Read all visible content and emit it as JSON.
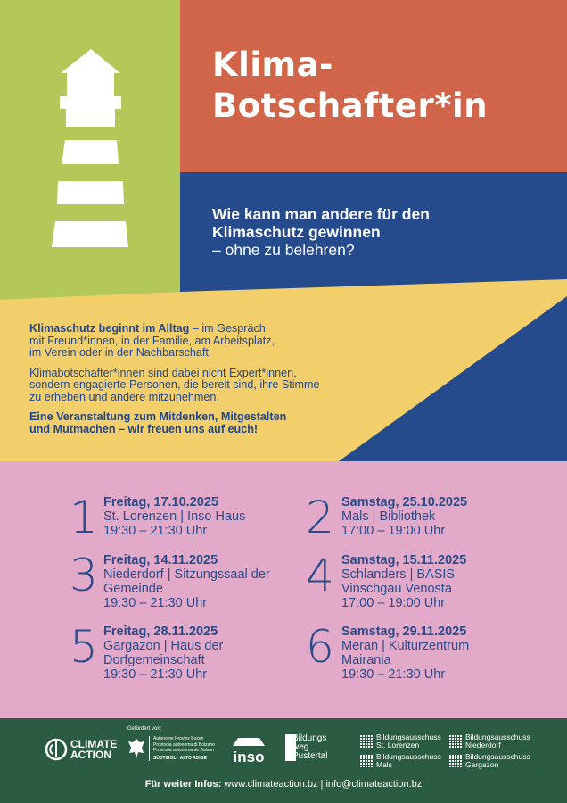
{
  "colors": {
    "green": "#b4c85a",
    "orange": "#d0654a",
    "blue": "#264b8d",
    "yellow": "#f2cf6b",
    "pink": "#e3a9c9",
    "footer": "#2b5b43",
    "text_blue": "#2a4b8a"
  },
  "header": {
    "title_line1": "Klima-",
    "title_line2": "Botschafter*in",
    "logo_icon": "lighthouse-icon"
  },
  "question": {
    "line1": "Wie kann man andere für den",
    "line2": "Klimaschutz gewinnen",
    "line3": "– ohne zu belehren?"
  },
  "intro": {
    "p1_bold": "Klimaschutz beginnt im Alltag",
    "p1_rest_1": " – im Gespräch",
    "p1_rest_2": "mit Freund*innen, in der Familie, am Arbeitsplatz,",
    "p1_rest_3": "im Verein oder in der Nachbarschaft.",
    "p2_1": "Klimabotschafter*innen sind dabei nicht Expert*innen,",
    "p2_2": "sondern engagierte Personen, die bereit sind, ihre Stimme",
    "p2_3": "zu erheben und andere mitzunehmen.",
    "p3_1": "Eine Veranstaltung zum Mitdenken, Mitgestalten",
    "p3_2": "und Mutmachen – wir freuen uns auf euch!"
  },
  "events": [
    {
      "number": "1",
      "date": "Freitag, 17.10.2025",
      "lines": [
        "St. Lorenzen | Inso Haus",
        "19:30 – 21:30 Uhr"
      ]
    },
    {
      "number": "2",
      "date": "Samstag, 25.10.2025",
      "lines": [
        "Mals | Bibliothek",
        "17:00 – 19:00 Uhr"
      ]
    },
    {
      "number": "3",
      "date": "Freitag, 14.11.2025",
      "lines": [
        "Niederdorf | Sitzungssaal der",
        "Gemeinde",
        "19:30 – 21:30 Uhr"
      ]
    },
    {
      "number": "4",
      "date": "Samstag, 15.11.2025",
      "lines": [
        "Schlanders | BASIS",
        "Vinschgau Venosta",
        "17:00 – 19:00 Uhr"
      ]
    },
    {
      "number": "5",
      "date": "Freitag, 28.11.2025",
      "lines": [
        "Gargazon | Haus der",
        "Dorfgemeinschaft",
        "19:30 – 21:30 Uhr"
      ]
    },
    {
      "number": "6",
      "date": "Samstag, 29.11.2025",
      "lines": [
        "Meran | Kulturzentrum",
        "Mairania",
        "19:30 – 21:30 Uhr"
      ]
    }
  ],
  "footer": {
    "climate_action": {
      "line1": "CLIMATE",
      "line2": "ACTION"
    },
    "funded_by": "Gefördert von:",
    "province": [
      "Autonome Provinz Bozen",
      "Provincia autonoma di Bolzano",
      "Provinzia autonoma de Bulsan",
      "SÜDTIROL · ALTO ADIGE"
    ],
    "inso": "inso",
    "bildungsweg": [
      "Bildungs",
      "weg",
      "Pustertal"
    ],
    "ausschuss": [
      {
        "line1": "Bildungsausschuss",
        "line2": "St. Lorenzen"
      },
      {
        "line1": "Bildungsausschuss",
        "line2": "Niederdorf"
      },
      {
        "line1": "Bildungsausschuss",
        "line2": "Mals"
      },
      {
        "line1": "Bildungsausschuss",
        "line2": "Gargazon"
      }
    ],
    "contact_label": "Für weiter Infos:",
    "contact_text": " www.climateaction.bz | info@climateaction.bz"
  }
}
